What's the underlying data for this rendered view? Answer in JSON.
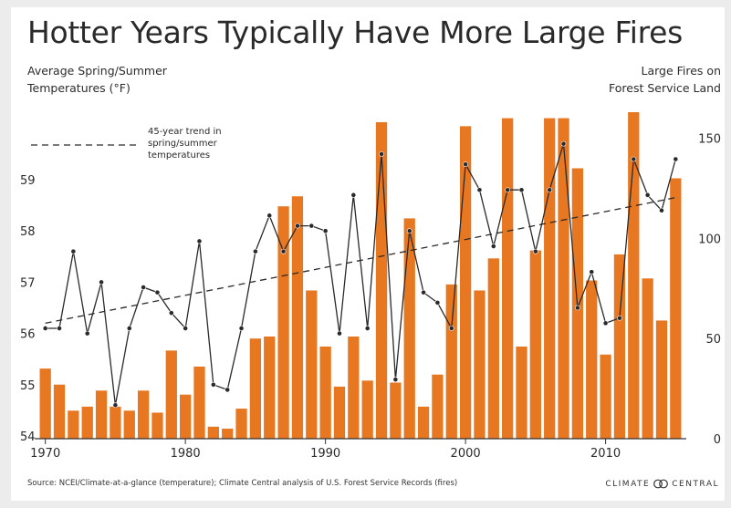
{
  "title": "Hotter Years Typically Have More Large Fires",
  "left_axis_label": [
    "Average Spring/Summer",
    "Temperatures (°F)"
  ],
  "right_axis_label": [
    "Large Fires on",
    "Forest Service Land"
  ],
  "trend_legend": [
    "45-year trend in",
    "spring/summer",
    "temperatures"
  ],
  "source": "Source: NCEI/Climate-at-a-glance (temperature); Climate Central analysis of U.S. Forest Service Records (fires)",
  "brand": {
    "left": "CLIMATE",
    "right": "CENTRAL"
  },
  "colors": {
    "bars": "#e87722",
    "line": "#2a2a2a",
    "text": "#2a2a2a"
  },
  "chart_data": {
    "type": "bar+line",
    "x": [
      1970,
      1971,
      1972,
      1973,
      1974,
      1975,
      1976,
      1977,
      1978,
      1979,
      1980,
      1981,
      1982,
      1983,
      1984,
      1985,
      1986,
      1987,
      1988,
      1989,
      1990,
      1991,
      1992,
      1993,
      1994,
      1995,
      1996,
      1997,
      1998,
      1999,
      2000,
      2001,
      2002,
      2003,
      2004,
      2005,
      2006,
      2007,
      2008,
      2009,
      2010,
      2011,
      2012,
      2013,
      2014,
      2015
    ],
    "x_ticks": [
      1970,
      1980,
      1990,
      2000,
      2010
    ],
    "series": [
      {
        "name": "Large Fires on Forest Service Land",
        "type": "bar",
        "axis": "right",
        "values": [
          35,
          27,
          14,
          16,
          24,
          16,
          14,
          24,
          13,
          44,
          22,
          36,
          6,
          5,
          15,
          50,
          51,
          116,
          121,
          74,
          46,
          26,
          51,
          29,
          158,
          28,
          110,
          16,
          32,
          77,
          156,
          74,
          90,
          160,
          46,
          94,
          160,
          160,
          135,
          79,
          42,
          92,
          163,
          80,
          59,
          130
        ]
      },
      {
        "name": "Average Spring/Summer Temperatures (°F)",
        "type": "line",
        "axis": "left",
        "values": [
          56.1,
          56.1,
          57.6,
          56.0,
          57.0,
          54.6,
          56.1,
          56.9,
          56.8,
          56.4,
          56.1,
          57.8,
          55.0,
          54.9,
          56.1,
          57.6,
          58.3,
          57.6,
          58.1,
          58.1,
          58.0,
          56.0,
          58.7,
          56.1,
          59.5,
          55.1,
          58.0,
          56.8,
          56.6,
          56.1,
          59.3,
          58.8,
          57.7,
          58.8,
          58.8,
          57.6,
          58.8,
          59.7,
          56.5,
          57.2,
          56.2,
          56.3,
          59.4,
          58.7,
          58.4,
          59.4
        ]
      },
      {
        "name": "45-year trend in spring/summer temperatures",
        "type": "trend",
        "axis": "left",
        "start": [
          1970,
          56.2
        ],
        "end": [
          2015,
          58.65
        ]
      }
    ],
    "y_left": {
      "ticks": [
        54,
        55,
        56,
        57,
        58,
        59
      ],
      "range": [
        54,
        59.7
      ]
    },
    "y_right": {
      "ticks": [
        0,
        50,
        100,
        150
      ],
      "range": [
        0,
        163
      ]
    },
    "grid": false
  }
}
